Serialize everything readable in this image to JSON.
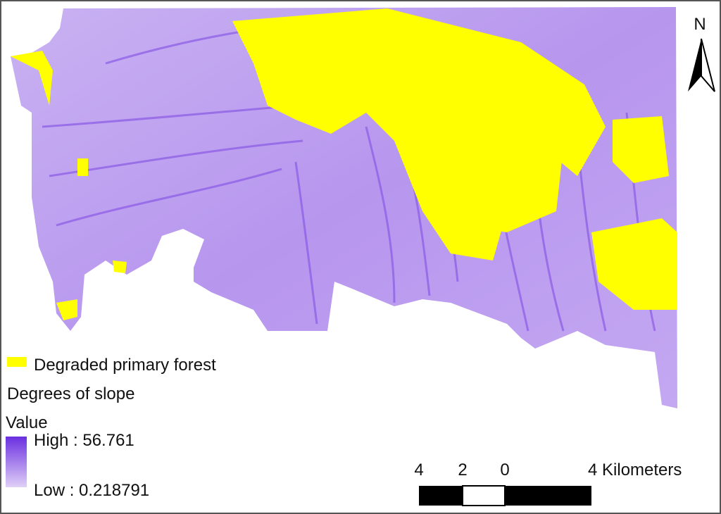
{
  "north_arrow": {
    "label": "N"
  },
  "legend": {
    "items": [
      {
        "label": "Degraded primary forest"
      }
    ],
    "raster_title": "Degrees of slope",
    "value_heading": "Value",
    "high_label": "High : 56.761",
    "low_label": "Low : 0.218791"
  },
  "scale_bar": {
    "labels": [
      "4",
      "2",
      "0",
      "4 Kilometers"
    ]
  }
}
